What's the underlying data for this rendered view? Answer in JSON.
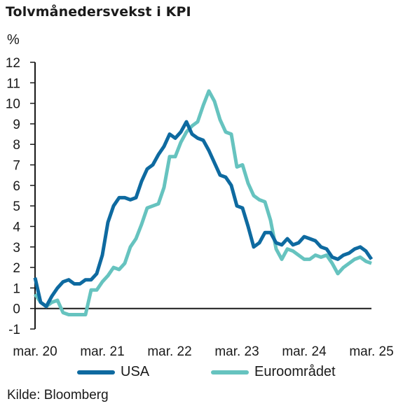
{
  "title": "Tolvmånedersvekst i KPI",
  "source": "Kilde: Bloomberg",
  "colors": {
    "USA": "#0e6aa0",
    "Euroområdet": "#66c3bf",
    "axis": "#1a1a1a"
  },
  "chart_data": {
    "type": "line",
    "title": "Tolvmånedersvekst i KPI",
    "ylabel": "%",
    "xlabel": "",
    "ylim": [
      -1,
      12
    ],
    "yticks": [
      -1,
      0,
      1,
      2,
      3,
      4,
      5,
      6,
      7,
      8,
      9,
      10,
      11,
      12
    ],
    "xlim": [
      "2020-03",
      "2025-03"
    ],
    "xticks": [
      {
        "date": "2020-03",
        "label": "mar. 20"
      },
      {
        "date": "2021-03",
        "label": "mar. 21"
      },
      {
        "date": "2022-03",
        "label": "mar. 22"
      },
      {
        "date": "2023-03",
        "label": "mar. 23"
      },
      {
        "date": "2024-03",
        "label": "mar. 24"
      },
      {
        "date": "2025-03",
        "label": "mar. 25"
      }
    ],
    "grid": false,
    "legend_position": "bottom",
    "x": [
      "2020-03",
      "2020-04",
      "2020-05",
      "2020-06",
      "2020-07",
      "2020-08",
      "2020-09",
      "2020-10",
      "2020-11",
      "2020-12",
      "2021-01",
      "2021-02",
      "2021-03",
      "2021-04",
      "2021-05",
      "2021-06",
      "2021-07",
      "2021-08",
      "2021-09",
      "2021-10",
      "2021-11",
      "2021-12",
      "2022-01",
      "2022-02",
      "2022-03",
      "2022-04",
      "2022-05",
      "2022-06",
      "2022-07",
      "2022-08",
      "2022-09",
      "2022-10",
      "2022-11",
      "2022-12",
      "2023-01",
      "2023-02",
      "2023-03",
      "2023-04",
      "2023-05",
      "2023-06",
      "2023-07",
      "2023-08",
      "2023-09",
      "2023-10",
      "2023-11",
      "2023-12",
      "2024-01",
      "2024-02",
      "2024-03",
      "2024-04",
      "2024-05",
      "2024-06",
      "2024-07",
      "2024-08",
      "2024-09",
      "2024-10",
      "2024-11",
      "2024-12",
      "2025-01",
      "2025-02",
      "2025-03"
    ],
    "series": [
      {
        "name": "USA",
        "values": [
          1.5,
          0.3,
          0.1,
          0.6,
          1.0,
          1.3,
          1.4,
          1.2,
          1.2,
          1.4,
          1.4,
          1.7,
          2.6,
          4.2,
          5.0,
          5.4,
          5.4,
          5.3,
          5.4,
          6.2,
          6.8,
          7.0,
          7.5,
          7.9,
          8.5,
          8.3,
          8.6,
          9.1,
          8.5,
          8.3,
          8.2,
          7.7,
          7.1,
          6.5,
          6.4,
          6.0,
          5.0,
          4.9,
          4.0,
          3.0,
          3.2,
          3.7,
          3.7,
          3.2,
          3.1,
          3.4,
          3.1,
          3.2,
          3.5,
          3.4,
          3.3,
          3.0,
          2.9,
          2.5,
          2.4,
          2.6,
          2.7,
          2.9,
          3.0,
          2.8,
          2.4
        ]
      },
      {
        "name": "Euroområdet",
        "values": [
          0.7,
          0.3,
          0.1,
          0.3,
          0.4,
          -0.2,
          -0.3,
          -0.3,
          -0.3,
          -0.3,
          0.9,
          0.9,
          1.3,
          1.6,
          2.0,
          1.9,
          2.2,
          3.0,
          3.4,
          4.1,
          4.9,
          5.0,
          5.1,
          5.9,
          7.4,
          7.4,
          8.1,
          8.6,
          8.9,
          9.1,
          9.9,
          10.6,
          10.1,
          9.2,
          8.6,
          8.5,
          6.9,
          7.0,
          6.1,
          5.5,
          5.3,
          5.2,
          4.3,
          2.9,
          2.4,
          2.9,
          2.8,
          2.6,
          2.4,
          2.4,
          2.6,
          2.5,
          2.6,
          2.2,
          1.7,
          2.0,
          2.2,
          2.4,
          2.5,
          2.3,
          2.2
        ]
      }
    ]
  }
}
